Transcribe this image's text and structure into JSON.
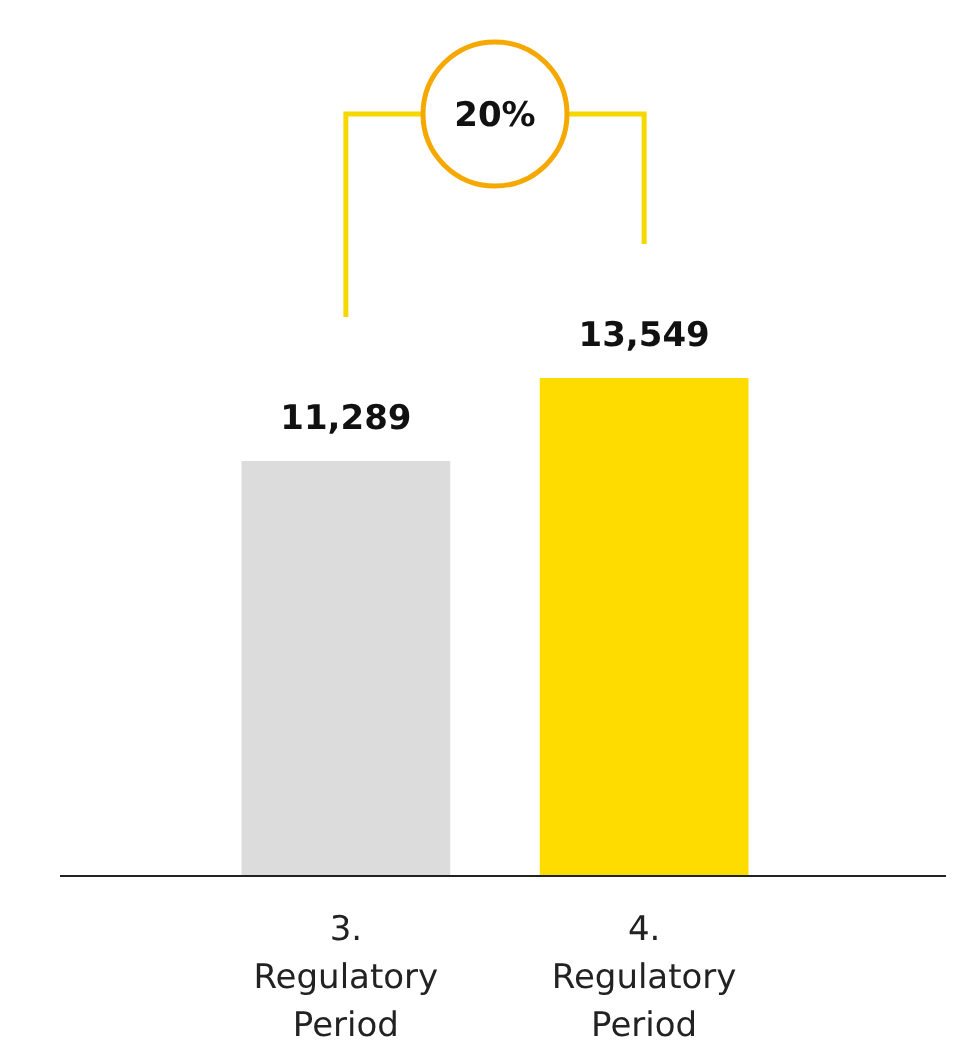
{
  "chart_data": {
    "type": "bar",
    "categories": [
      "3. Regulatory Period",
      "4. Regulatory Period"
    ],
    "values": [
      11289,
      13549
    ],
    "colors": [
      "#dcdcdc",
      "#ffdc00"
    ],
    "value_labels": [
      "11,289",
      "13,549"
    ],
    "annotations": [
      "20%"
    ]
  }
}
